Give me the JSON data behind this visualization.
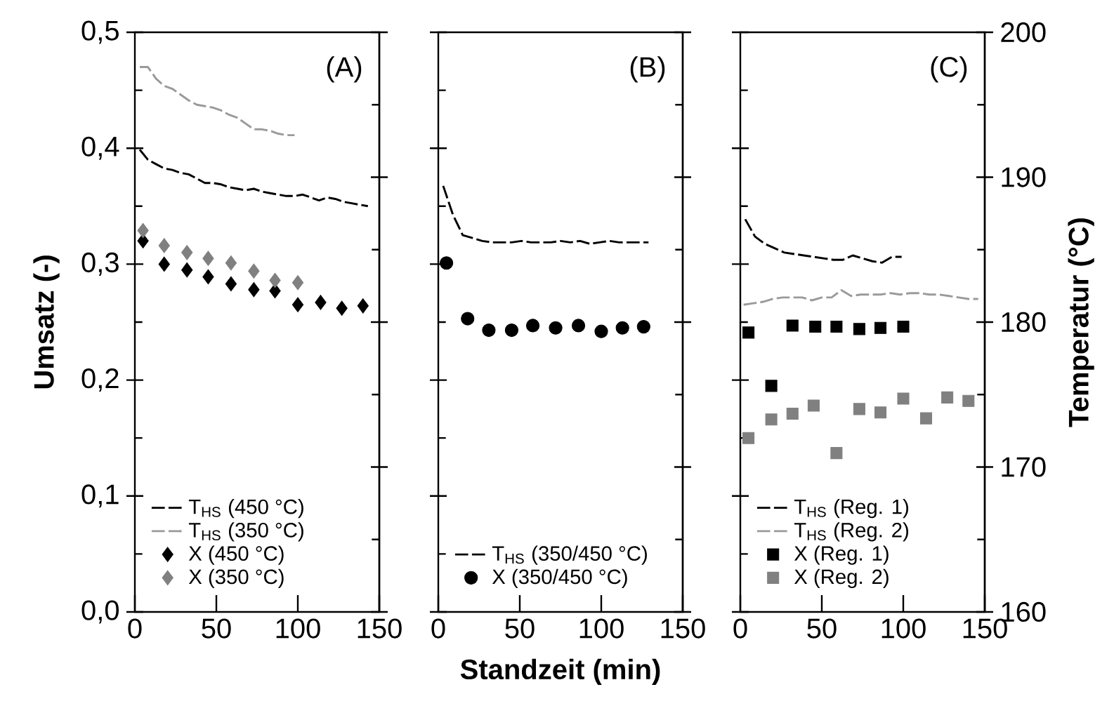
{
  "chart_data": [
    {
      "type": "scatter",
      "ylabel": "Umsatz (-)",
      "annotations": [
        "(A)"
      ],
      "legend": "bottom left",
      "tick_labels": [
        "x",
        "y"
      ],
      "xlim": [
        0,
        150
      ],
      "xticks": [
        0,
        50,
        100,
        150
      ],
      "ylim": [
        0,
        0.5
      ],
      "yticks": [
        {
          "value": 0,
          "label": "0,0"
        },
        {
          "value": 0.05,
          "label": null
        },
        {
          "value": 0.1,
          "label": "0,1"
        },
        {
          "value": 0.15,
          "label": null
        },
        {
          "value": 0.2,
          "label": "0,2"
        },
        {
          "value": 0.25,
          "label": null
        },
        {
          "value": 0.3,
          "label": "0,3"
        },
        {
          "value": 0.35,
          "label": null
        },
        {
          "value": 0.4,
          "label": "0,4"
        },
        {
          "value": 0.45,
          "label": null
        },
        {
          "value": 0.5,
          "label": "0,5"
        }
      ],
      "y2lim": [
        160,
        200
      ],
      "series": [
        {
          "name": "T$_{HS}$ (450 °C)",
          "type": "line",
          "axis": "y2",
          "color": "#000000",
          "marker": "none",
          "line_style": "dashed",
          "x": [
            3,
            8,
            13,
            18,
            23,
            28,
            33,
            38,
            43,
            48,
            53,
            58,
            63,
            68,
            73,
            78,
            83,
            88,
            93,
            98,
            103,
            108,
            113,
            118,
            123,
            128,
            133,
            138,
            143
          ],
          "values": [
            191.9,
            191.2,
            190.9,
            190.6,
            190.5,
            190.3,
            190.2,
            189.9,
            189.6,
            189.6,
            189.5,
            189.3,
            189.2,
            189.1,
            189.2,
            189.0,
            188.9,
            188.8,
            188.7,
            188.7,
            188.8,
            188.6,
            188.4,
            188.6,
            188.5,
            188.3,
            188.2,
            188.1,
            188.0
          ]
        },
        {
          "name": "T$_{HS}$ (350 °C)",
          "type": "line",
          "axis": "y2",
          "color": "#9a9a9a",
          "marker": "none",
          "line_style": "dashed",
          "x": [
            3,
            8,
            13,
            18,
            23,
            28,
            33,
            38,
            43,
            48,
            53,
            58,
            63,
            68,
            73,
            78,
            83,
            88,
            93,
            98
          ],
          "values": [
            197.6,
            197.6,
            196.8,
            196.3,
            196.1,
            195.7,
            195.3,
            195.0,
            194.9,
            194.8,
            194.6,
            194.3,
            194.1,
            193.7,
            193.3,
            193.3,
            193.2,
            193.0,
            192.9,
            192.9
          ]
        },
        {
          "name": "X (450 °C)",
          "type": "scatter",
          "color": "#000000",
          "marker": "diamond",
          "x": [
            5,
            18,
            32,
            45,
            59,
            73,
            86,
            100,
            114,
            127,
            140
          ],
          "values": [
            0.32,
            0.3,
            0.295,
            0.289,
            0.283,
            0.278,
            0.277,
            0.265,
            0.267,
            0.262,
            0.264
          ]
        },
        {
          "name": "X (350 °C)",
          "type": "scatter",
          "color": "#808080",
          "marker": "diamond",
          "x": [
            5,
            18,
            32,
            45,
            59,
            73,
            86,
            100
          ],
          "values": [
            0.329,
            0.316,
            0.31,
            0.305,
            0.301,
            0.294,
            0.286,
            0.284
          ]
        }
      ]
    },
    {
      "type": "scatter",
      "xlabel": "Standzeit (min)",
      "annotations": [
        "(B)"
      ],
      "legend": "bottom left",
      "tick_labels": [
        "x"
      ],
      "xlim": [
        0,
        150
      ],
      "xticks": [
        0,
        50,
        100,
        150
      ],
      "ylim": [
        0,
        0.5
      ],
      "y2lim": [
        160,
        200
      ],
      "series": [
        {
          "name": "T$_{HS}$ (350/450 °C)",
          "type": "line",
          "axis": "y2",
          "color": "#000000",
          "marker": "none",
          "line_style": "dashed",
          "x": [
            3,
            9,
            15,
            21,
            27,
            33,
            39,
            45,
            51,
            57,
            63,
            69,
            75,
            81,
            87,
            93,
            99,
            105,
            111,
            117,
            123,
            129
          ],
          "values": [
            189.4,
            187.4,
            186.0,
            185.8,
            185.6,
            185.5,
            185.5,
            185.5,
            185.6,
            185.5,
            185.5,
            185.5,
            185.6,
            185.5,
            185.6,
            185.4,
            185.5,
            185.6,
            185.5,
            185.5,
            185.5,
            185.5
          ]
        },
        {
          "name": "X (350/450 °C)",
          "type": "scatter",
          "color": "#000000",
          "marker": "circle",
          "x": [
            5,
            18,
            31,
            45,
            58,
            72,
            86,
            100,
            113,
            126
          ],
          "values": [
            0.301,
            0.253,
            0.243,
            0.243,
            0.247,
            0.245,
            0.247,
            0.242,
            0.245,
            0.246
          ]
        }
      ]
    },
    {
      "type": "scatter",
      "y2label": "Temperatur (°C)",
      "annotations": [
        "(C)"
      ],
      "legend": "bottom left",
      "tick_labels": [
        "x",
        "y2"
      ],
      "xlim": [
        0,
        150
      ],
      "xticks": [
        0,
        50,
        100,
        150
      ],
      "ylim": [
        0,
        0.5
      ],
      "y2lim": [
        160,
        200
      ],
      "y2ticks": [
        160,
        {
          "value": 165,
          "label": null
        },
        170,
        {
          "value": 175,
          "label": null
        },
        180,
        {
          "value": 185,
          "label": null
        },
        190,
        {
          "value": 195,
          "label": null
        },
        200
      ],
      "series": [
        {
          "name": "T$_{HS}$ (Reg. 1)",
          "type": "line",
          "axis": "y2",
          "color": "#000000",
          "marker": "none",
          "line_style": "dashed",
          "x": [
            3,
            9,
            15,
            21,
            27,
            33,
            39,
            45,
            51,
            57,
            63,
            69,
            75,
            81,
            87,
            93,
            99
          ],
          "values": [
            187.1,
            185.9,
            185.4,
            185.1,
            184.8,
            184.7,
            184.6,
            184.5,
            184.4,
            184.3,
            184.3,
            184.6,
            184.4,
            184.2,
            184.1,
            184.5,
            184.5
          ]
        },
        {
          "name": "T$_{HS}$ (Reg. 2)",
          "type": "line",
          "axis": "y2",
          "color": "#9a9a9a",
          "marker": "none",
          "line_style": "dashed",
          "x": [
            2,
            8,
            14,
            20,
            26,
            32,
            38,
            44,
            50,
            56,
            62,
            68,
            74,
            80,
            86,
            92,
            98,
            104,
            110,
            116,
            122,
            128,
            134,
            140,
            146
          ],
          "values": [
            181.2,
            181.3,
            181.4,
            181.6,
            181.7,
            181.7,
            181.7,
            181.5,
            181.7,
            181.7,
            182.2,
            181.8,
            181.9,
            181.9,
            181.9,
            182.0,
            181.9,
            182.0,
            182.0,
            181.9,
            181.9,
            181.8,
            181.7,
            181.6,
            181.6
          ]
        },
        {
          "name": "X (Reg. 1)",
          "type": "scatter",
          "color": "#000000",
          "marker": "square",
          "x": [
            5,
            19,
            32,
            46,
            59,
            73,
            86,
            100
          ],
          "values": [
            0.241,
            0.195,
            0.247,
            0.246,
            0.246,
            0.244,
            0.245,
            0.246
          ]
        },
        {
          "name": "X (Reg. 2)",
          "type": "scatter",
          "color": "#808080",
          "marker": "square",
          "x": [
            5,
            19,
            32,
            45,
            59,
            73,
            86,
            100,
            114,
            127,
            140
          ],
          "values": [
            0.15,
            0.166,
            0.171,
            0.178,
            0.137,
            0.175,
            0.172,
            0.184,
            0.167,
            0.185,
            0.182
          ]
        }
      ]
    }
  ]
}
